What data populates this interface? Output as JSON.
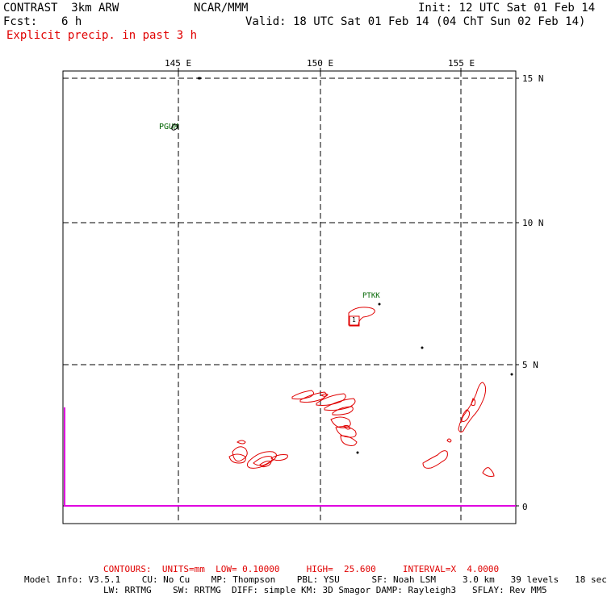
{
  "header": {
    "model": "CONTRAST  3km ARW",
    "org": "NCAR/MMM",
    "init": "Init: 12 UTC Sat 01 Feb 14",
    "fcst_label": "Fcst:",
    "fcst_value": "6 h",
    "valid": "Valid: 18 UTC Sat 01 Feb 14 (04 ChT Sun 02 Feb 14)",
    "field": "Explicit precip. in past 3 h"
  },
  "map": {
    "lon_labels": [
      "145 E",
      "150 E",
      "155 E"
    ],
    "lat_labels": [
      "15 N",
      "10 N",
      "5 N",
      "0"
    ],
    "stations": [
      "PGUM",
      "PTKK"
    ],
    "contour_label": "1"
  },
  "footer": {
    "contours": "CONTOURS:  UNITS=mm  LOW= 0.10000     HIGH=  25.600     INTERVAL=X  4.0000",
    "model_info_1": "Model Info: V3.5.1    CU: No Cu    MP: Thompson    PBL: YSU      SF: Noah LSM     3.0 km   39 levels   18 sec",
    "model_info_2": "LW: RRTMG    SW: RRTMG  DIFF: simple KM: 3D Smagor DAMP: Rayleigh3   SFLAY: Rev MM5"
  },
  "colors": {
    "contour": "#e00000",
    "station": "#006400",
    "boundary": "#e000e0"
  }
}
